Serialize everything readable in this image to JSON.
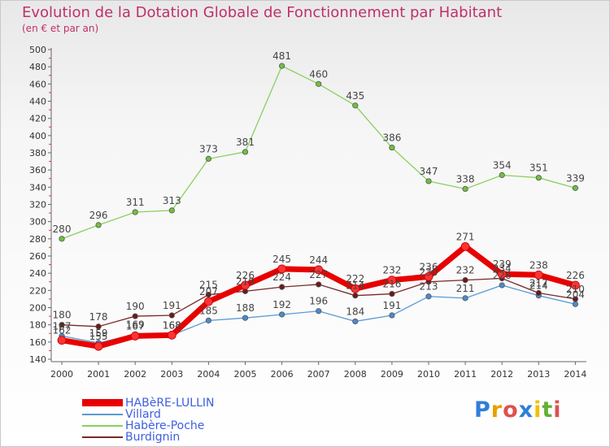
{
  "title": "Evolution de la Dotation Globale de Fonctionnement par Habitant",
  "subtitle": "(en € et par an)",
  "logo": {
    "text": "Proxiti",
    "colors": [
      "#2f7fd8",
      "#e8a000",
      "#e05050",
      "#2f7fd8",
      "#f0c000",
      "#60b030",
      "#e05050"
    ]
  },
  "chart_data": {
    "type": "line",
    "title": "Evolution de la Dotation Globale de Fonctionnement par Habitant",
    "subtitle": "(en € et par an)",
    "categories": [
      "2000",
      "2001",
      "2002",
      "2003",
      "2004",
      "2005",
      "2006",
      "2007",
      "2008",
      "2009",
      "2010",
      "2011",
      "2012",
      "2013",
      "2014"
    ],
    "ylim": [
      140,
      500
    ],
    "yticks": [
      "140",
      "160",
      "180",
      "200",
      "220",
      "240",
      "260",
      "280",
      "300",
      "320",
      "340",
      "360",
      "380",
      "400",
      "420",
      "440",
      "460",
      "480",
      "500"
    ],
    "grid": false,
    "legend_position": "bottom-left",
    "series": [
      {
        "name": "HABèRE-LULLIN",
        "color": "#e80000",
        "point_color": "#ff3333",
        "width": 7,
        "labels": [
          "162",
          "155",
          "167",
          "168",
          "207",
          "226",
          "245",
          "244",
          "222",
          "232",
          "236",
          "271",
          "239",
          "238",
          "226"
        ],
        "values": [
          162,
          155,
          167,
          168,
          207,
          226,
          245,
          244,
          222,
          232,
          236,
          271,
          239,
          238,
          226
        ]
      },
      {
        "name": "Villard",
        "color": "#5a9ad5",
        "point_color": "#4a8ad0",
        "width": 1.3,
        "labels": [
          "167",
          "159",
          "169",
          "168",
          "185",
          "188",
          "192",
          "196",
          "184",
          "191",
          "213",
          "211",
          "226",
          "214",
          "204"
        ],
        "values": [
          167,
          159,
          169,
          168,
          185,
          188,
          192,
          196,
          184,
          191,
          213,
          211,
          226,
          214,
          204
        ]
      },
      {
        "name": "Habère-Poche",
        "color": "#88d060",
        "point_color": "#70c040",
        "width": 1.3,
        "labels": [
          "280",
          "296",
          "311",
          "313",
          "373",
          "381",
          "481",
          "460",
          "435",
          "386",
          "347",
          "338",
          "354",
          "351",
          "339"
        ],
        "values": [
          280,
          296,
          311,
          313,
          373,
          381,
          481,
          460,
          435,
          386,
          347,
          338,
          354,
          351,
          339
        ]
      },
      {
        "name": "Burdignin",
        "color": "#7a2828",
        "point_color": "#6a1a1a",
        "width": 1.3,
        "labels": [
          "180",
          "178",
          "190",
          "191",
          "215",
          "219",
          "224",
          "227",
          "214",
          "216",
          "230",
          "232",
          "234",
          "217",
          "210"
        ],
        "values": [
          180,
          178,
          190,
          191,
          215,
          219,
          224,
          227,
          214,
          216,
          230,
          232,
          234,
          217,
          210
        ]
      }
    ]
  }
}
